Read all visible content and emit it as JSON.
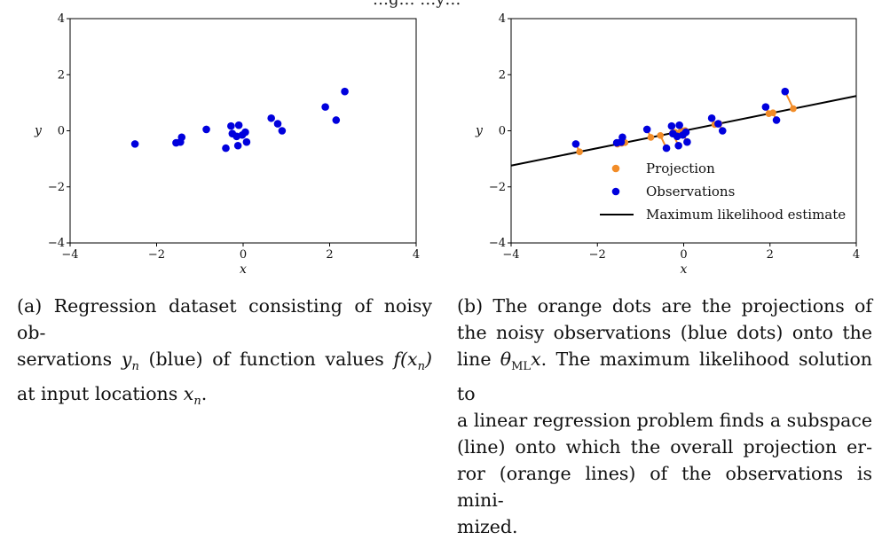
{
  "top_clipped_text": "…g…   …y…",
  "chart_data": [
    {
      "type": "scatter",
      "panel": "a",
      "xlabel": "x",
      "ylabel": "y",
      "xlim": [
        -4,
        4
      ],
      "ylim": [
        -4,
        4
      ],
      "xticks": [
        "−4",
        "−2",
        "0",
        "2",
        "4"
      ],
      "yticks": [
        "−4",
        "−2",
        "0",
        "2",
        "4"
      ],
      "grid": false,
      "series": [
        {
          "color": "#0000dd",
          "points": [
            [
              -2.5,
              -0.47
            ],
            [
              -1.55,
              -0.43
            ],
            [
              -1.45,
              -0.4
            ],
            [
              -1.42,
              -0.23
            ],
            [
              -0.85,
              0.05
            ],
            [
              -0.4,
              -0.62
            ],
            [
              -0.28,
              0.17
            ],
            [
              -0.25,
              -0.1
            ],
            [
              -0.15,
              -0.2
            ],
            [
              -0.12,
              -0.53
            ],
            [
              -0.1,
              0.2
            ],
            [
              -0.02,
              -0.15
            ],
            [
              0.05,
              -0.05
            ],
            [
              0.08,
              -0.4
            ],
            [
              0.65,
              0.45
            ],
            [
              0.8,
              0.25
            ],
            [
              0.9,
              0.0
            ],
            [
              1.9,
              0.85
            ],
            [
              2.15,
              0.38
            ],
            [
              2.35,
              1.4
            ]
          ]
        }
      ]
    },
    {
      "type": "scatter",
      "panel": "b",
      "xlabel": "x",
      "ylabel": "y",
      "xlim": [
        -4,
        4
      ],
      "ylim": [
        -4,
        4
      ],
      "xticks": [
        "−4",
        "−2",
        "0",
        "2",
        "4"
      ],
      "yticks": [
        "−4",
        "−2",
        "0",
        "2",
        "4"
      ],
      "grid": false,
      "line": {
        "name": "Maximum likelihood estimate",
        "slope": 0.31,
        "color": "#000000"
      },
      "series": [
        {
          "name": "Projection",
          "color": "#f28c28",
          "kind": "projection"
        },
        {
          "name": "Observations",
          "color": "#0000dd",
          "points": [
            [
              -2.5,
              -0.47
            ],
            [
              -1.55,
              -0.43
            ],
            [
              -1.45,
              -0.4
            ],
            [
              -1.42,
              -0.23
            ],
            [
              -0.85,
              0.05
            ],
            [
              -0.4,
              -0.62
            ],
            [
              -0.28,
              0.17
            ],
            [
              -0.25,
              -0.1
            ],
            [
              -0.15,
              -0.2
            ],
            [
              -0.12,
              -0.53
            ],
            [
              -0.1,
              0.2
            ],
            [
              -0.02,
              -0.15
            ],
            [
              0.05,
              -0.05
            ],
            [
              0.08,
              -0.4
            ],
            [
              0.65,
              0.45
            ],
            [
              0.8,
              0.25
            ],
            [
              0.9,
              0.0
            ],
            [
              1.9,
              0.85
            ],
            [
              2.15,
              0.38
            ],
            [
              2.35,
              1.4
            ]
          ]
        }
      ],
      "legend": {
        "position": "lower-right",
        "entries": [
          "Projection",
          "Observations",
          "Maximum likelihood estimate"
        ]
      }
    }
  ],
  "captions": {
    "a": {
      "lines": [
        [
          "(a) Regression dataset consisting of noisy ob-"
        ],
        [
          "servations ",
          "y",
          "n",
          " (blue) of function values ",
          "f(x",
          "n",
          ")"
        ],
        [
          "at input locations ",
          "x",
          "n",
          "."
        ]
      ]
    },
    "b": {
      "lines": [
        [
          "(b) The orange dots are the projections of"
        ],
        [
          "the noisy observations (blue dots) onto the"
        ],
        [
          "line ",
          "θ",
          "ML",
          "x",
          ". The maximum likelihood solution to"
        ],
        [
          "a linear regression problem finds a subspace"
        ],
        [
          "(line) onto which the overall projection er-"
        ],
        [
          "ror (orange lines) of the observations is mini-"
        ],
        [
          "mized."
        ]
      ]
    }
  }
}
